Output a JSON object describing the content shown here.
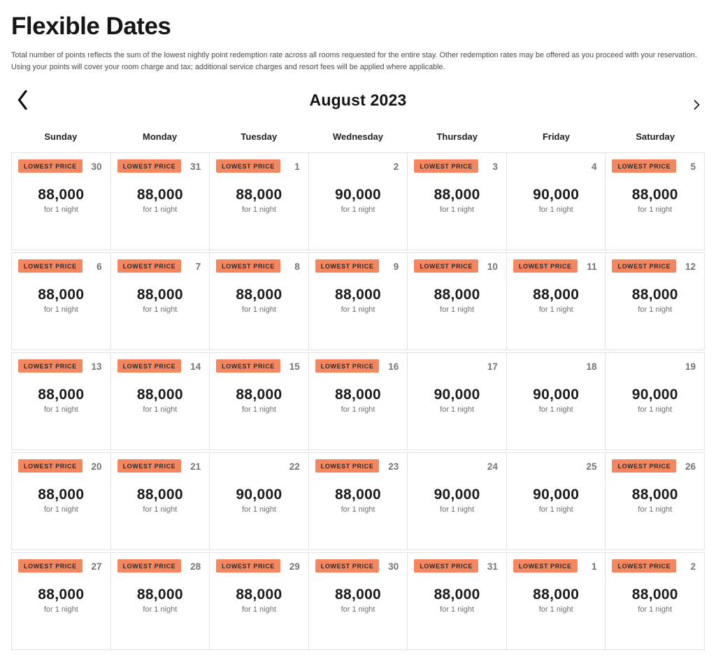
{
  "page": {
    "title": "Flexible Dates",
    "description": "Total number of points reflects the sum of the lowest nightly point redemption rate across all rooms requested for the entire stay. Other redemption rates may be offered as you proceed with your reservation. Using your points will cover your room charge and tax; additional service charges and resort fees will be applied where applicable."
  },
  "nav": {
    "month_label": "August 2023",
    "prev_icon": "chevron-left",
    "next_icon": "chevron-right"
  },
  "calendar": {
    "weekdays": [
      "Sunday",
      "Monday",
      "Tuesday",
      "Wednesday",
      "Thursday",
      "Friday",
      "Saturday"
    ],
    "badge_label": "LOWEST PRICE",
    "unit_label": "for 1 night",
    "colors": {
      "badge_bg": "#f4875f",
      "grid_border": "#e2e2e2",
      "muted_text": "#757575",
      "price_text": "#1c1c1c"
    },
    "weeks": [
      [
        {
          "day": "30",
          "lowest_price": true,
          "points": "88,000"
        },
        {
          "day": "31",
          "lowest_price": true,
          "points": "88,000"
        },
        {
          "day": "1",
          "lowest_price": true,
          "points": "88,000"
        },
        {
          "day": "2",
          "lowest_price": false,
          "points": "90,000"
        },
        {
          "day": "3",
          "lowest_price": true,
          "points": "88,000"
        },
        {
          "day": "4",
          "lowest_price": false,
          "points": "90,000"
        },
        {
          "day": "5",
          "lowest_price": true,
          "points": "88,000"
        }
      ],
      [
        {
          "day": "6",
          "lowest_price": true,
          "points": "88,000"
        },
        {
          "day": "7",
          "lowest_price": true,
          "points": "88,000"
        },
        {
          "day": "8",
          "lowest_price": true,
          "points": "88,000"
        },
        {
          "day": "9",
          "lowest_price": true,
          "points": "88,000"
        },
        {
          "day": "10",
          "lowest_price": true,
          "points": "88,000"
        },
        {
          "day": "11",
          "lowest_price": true,
          "points": "88,000"
        },
        {
          "day": "12",
          "lowest_price": true,
          "points": "88,000"
        }
      ],
      [
        {
          "day": "13",
          "lowest_price": true,
          "points": "88,000"
        },
        {
          "day": "14",
          "lowest_price": true,
          "points": "88,000"
        },
        {
          "day": "15",
          "lowest_price": true,
          "points": "88,000"
        },
        {
          "day": "16",
          "lowest_price": true,
          "points": "88,000"
        },
        {
          "day": "17",
          "lowest_price": false,
          "points": "90,000"
        },
        {
          "day": "18",
          "lowest_price": false,
          "points": "90,000"
        },
        {
          "day": "19",
          "lowest_price": false,
          "points": "90,000"
        }
      ],
      [
        {
          "day": "20",
          "lowest_price": true,
          "points": "88,000"
        },
        {
          "day": "21",
          "lowest_price": true,
          "points": "88,000"
        },
        {
          "day": "22",
          "lowest_price": false,
          "points": "90,000"
        },
        {
          "day": "23",
          "lowest_price": true,
          "points": "88,000"
        },
        {
          "day": "24",
          "lowest_price": false,
          "points": "90,000"
        },
        {
          "day": "25",
          "lowest_price": false,
          "points": "90,000"
        },
        {
          "day": "26",
          "lowest_price": true,
          "points": "88,000"
        }
      ],
      [
        {
          "day": "27",
          "lowest_price": true,
          "points": "88,000"
        },
        {
          "day": "28",
          "lowest_price": true,
          "points": "88,000"
        },
        {
          "day": "29",
          "lowest_price": true,
          "points": "88,000"
        },
        {
          "day": "30",
          "lowest_price": true,
          "points": "88,000"
        },
        {
          "day": "31",
          "lowest_price": true,
          "points": "88,000"
        },
        {
          "day": "1",
          "lowest_price": true,
          "points": "88,000"
        },
        {
          "day": "2",
          "lowest_price": true,
          "points": "88,000"
        }
      ]
    ]
  }
}
